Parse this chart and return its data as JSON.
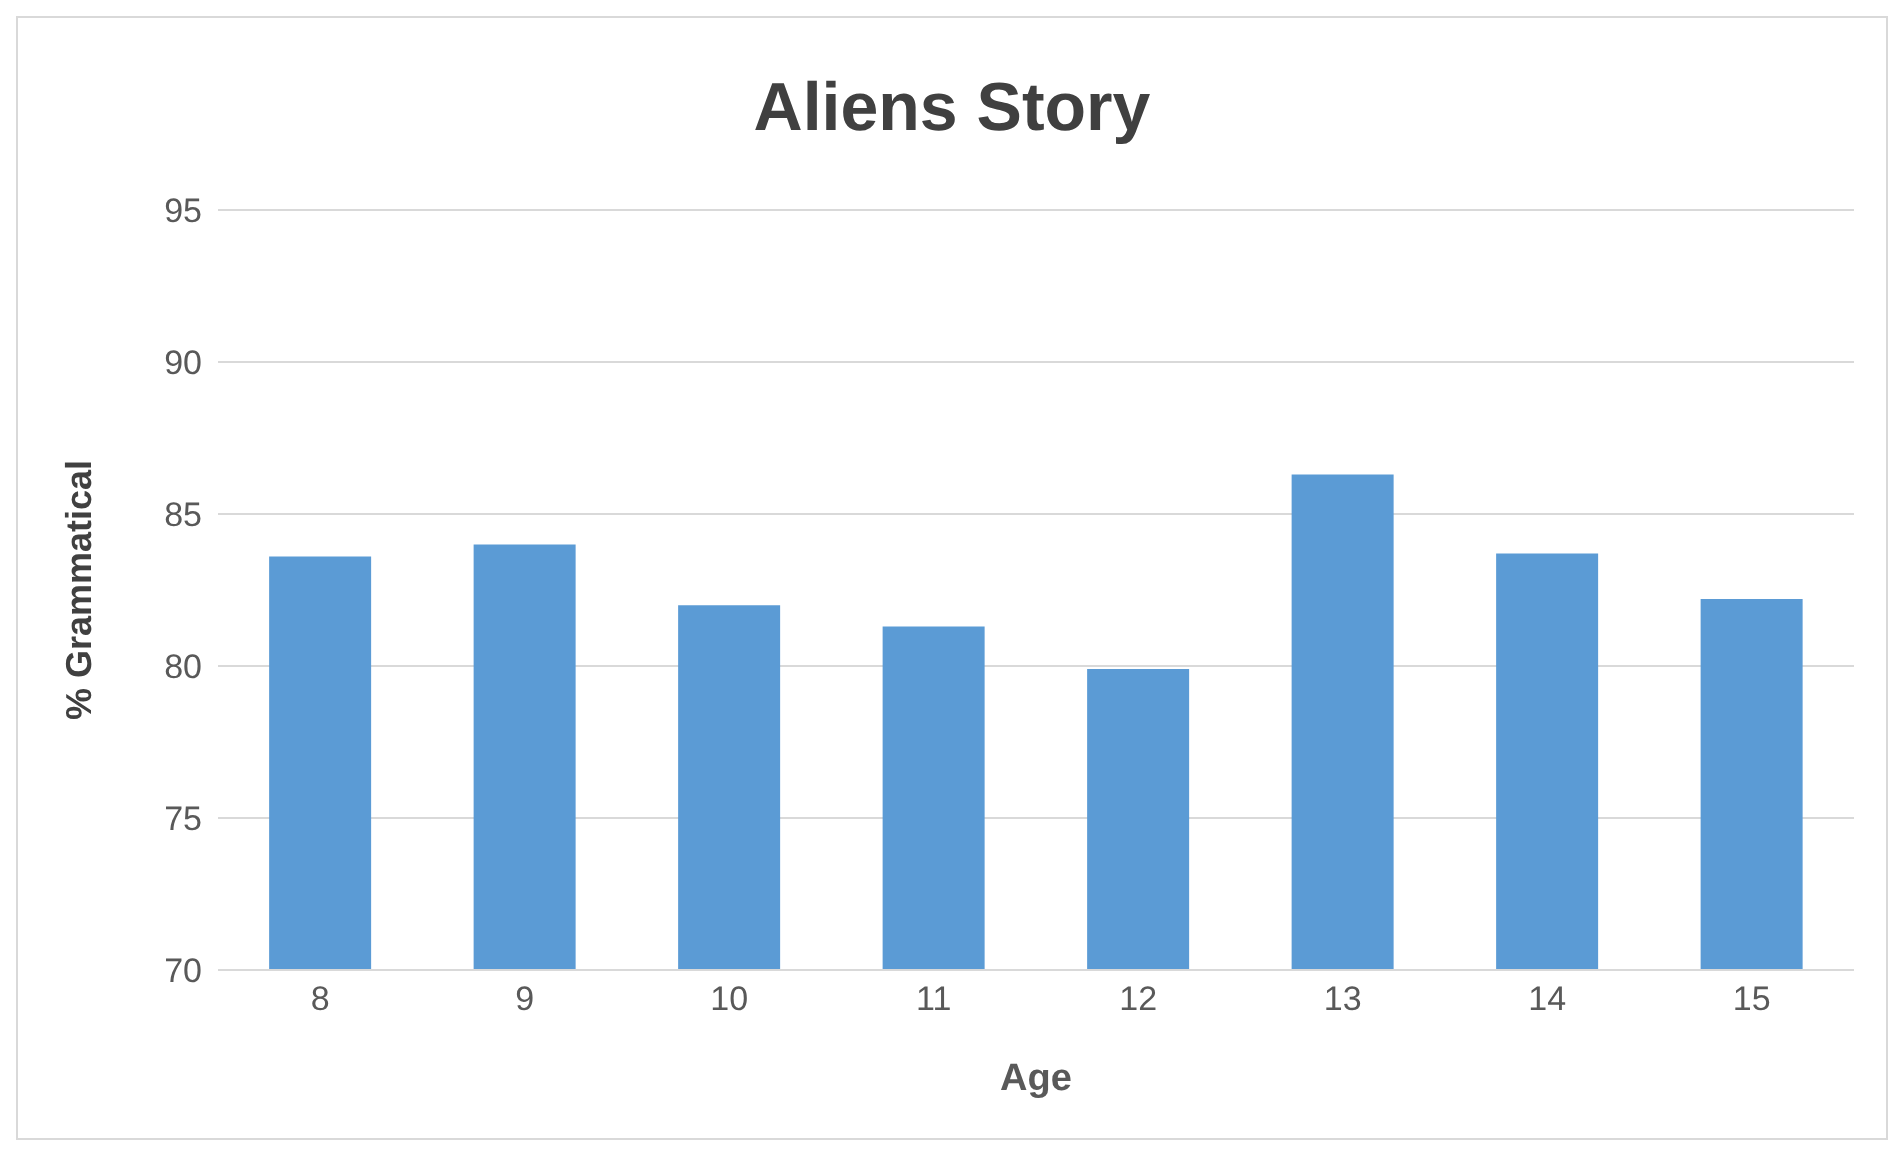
{
  "chart_data": {
    "type": "bar",
    "title": "Aliens Story",
    "xlabel": "Age",
    "ylabel": "% Grammatical",
    "categories": [
      "8",
      "9",
      "10",
      "11",
      "12",
      "13",
      "14",
      "15"
    ],
    "values": [
      83.6,
      84.0,
      82.0,
      81.3,
      79.9,
      86.3,
      83.7,
      82.2
    ],
    "color": "#5b9bd5",
    "ylim": [
      70,
      95
    ],
    "yticks": [
      70,
      75,
      80,
      85,
      90,
      95
    ],
    "grid": "y"
  }
}
